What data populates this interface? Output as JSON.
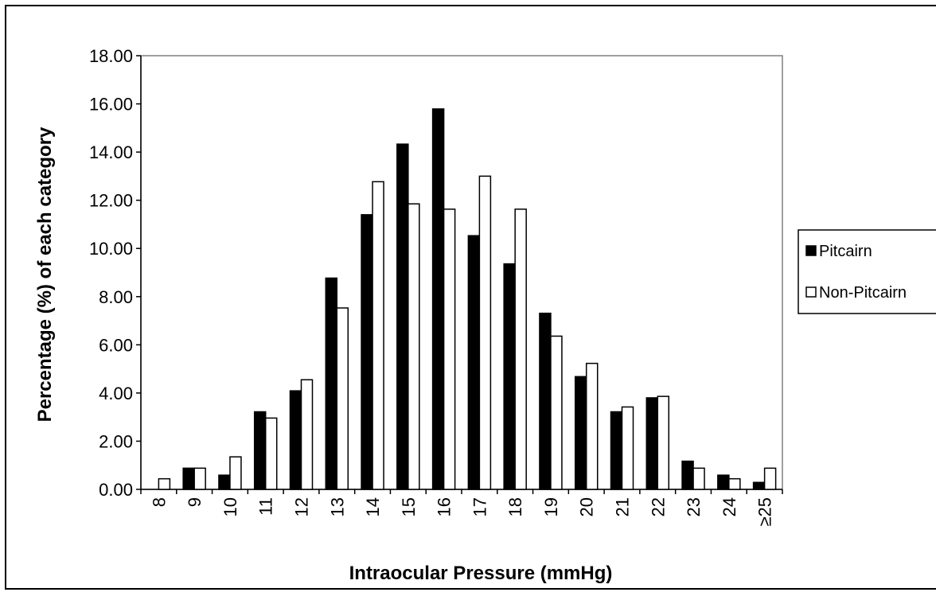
{
  "chart_data": {
    "type": "bar",
    "title": "",
    "xlabel": "Intraocular Pressure (mmHg)",
    "ylabel": "Percentage (%) of each category",
    "ylim": [
      0,
      18
    ],
    "yticks": [
      "0.00",
      "2.00",
      "4.00",
      "6.00",
      "8.00",
      "10.00",
      "12.00",
      "14.00",
      "16.00",
      "18.00"
    ],
    "categories": [
      "8",
      "9",
      "10",
      "11",
      "12",
      "13",
      "14",
      "15",
      "16",
      "17",
      "18",
      "19",
      "20",
      "21",
      "22",
      "23",
      "24",
      "≥25"
    ],
    "series": [
      {
        "name": "Pitcairn",
        "color": "#000000",
        "values": [
          0.0,
          0.88,
          0.59,
          3.22,
          4.09,
          8.77,
          11.4,
          14.33,
          15.79,
          10.53,
          9.36,
          7.31,
          4.68,
          3.22,
          3.8,
          1.17,
          0.59,
          0.29
        ]
      },
      {
        "name": "Non-Pitcairn",
        "color": "#ffffff",
        "values": [
          0.44,
          0.88,
          1.35,
          2.96,
          4.55,
          7.53,
          12.77,
          11.85,
          11.63,
          13.0,
          11.63,
          6.36,
          5.23,
          3.42,
          3.86,
          0.88,
          0.44,
          0.88
        ]
      }
    ],
    "grid": false,
    "legend_position": "right"
  }
}
